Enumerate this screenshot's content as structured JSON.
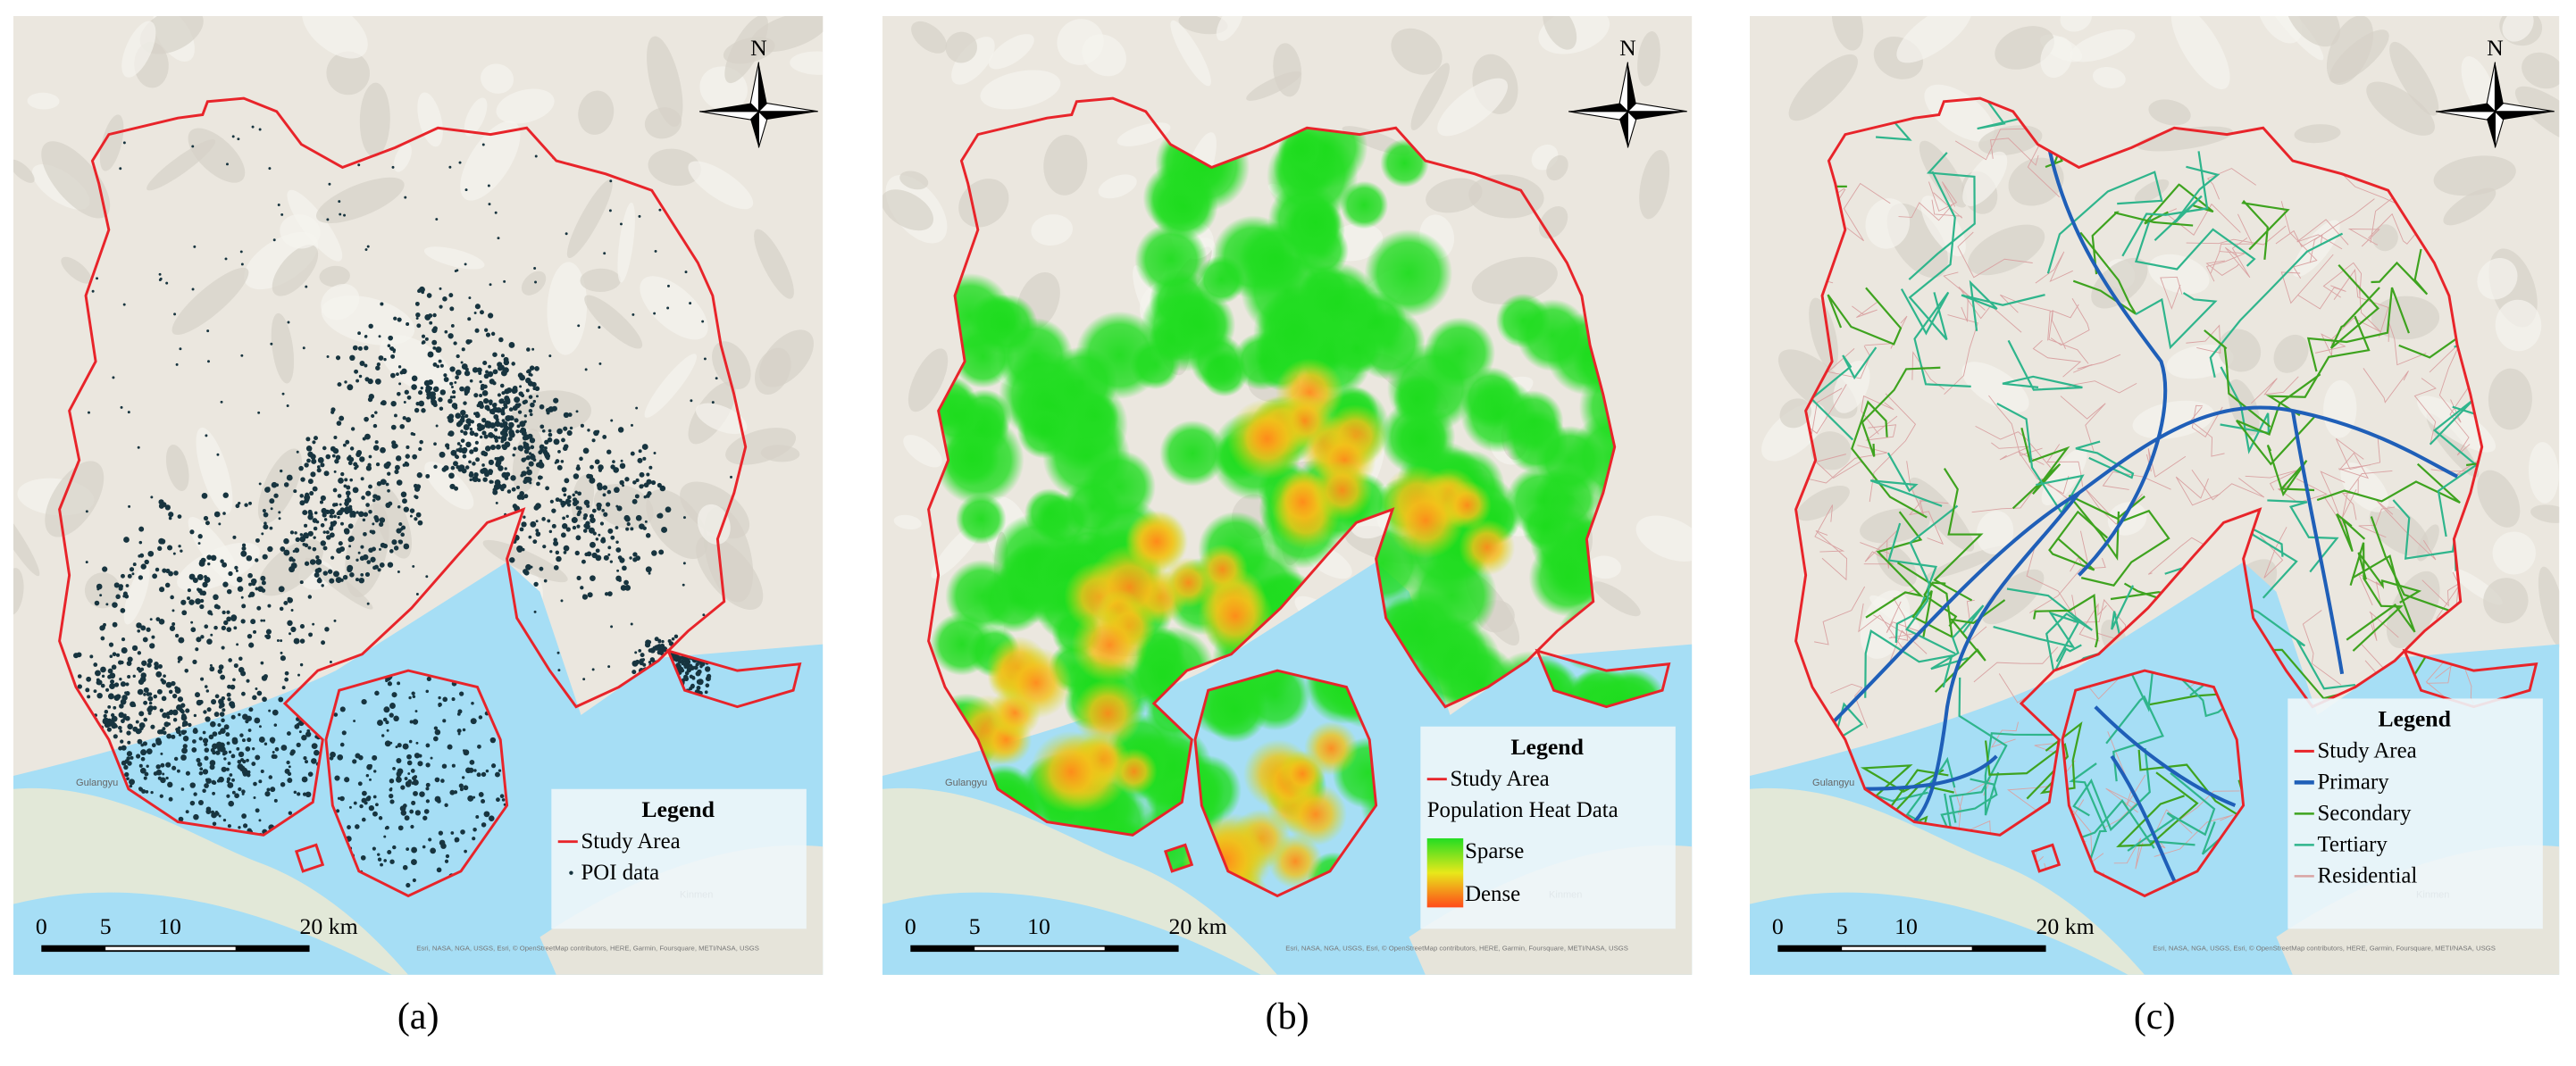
{
  "panels": [
    {
      "label": "(a)",
      "north": "N",
      "scale_bar": [
        "0",
        "5",
        "10",
        "20 km"
      ],
      "place_labels": [
        "Gulangyu",
        "Kinmen"
      ],
      "attribution": "Esri, NASA, NGA, USGS, Esri, © OpenStreetMap contributors, HERE, Garmin, Foursquare, METI/NASA, USGS",
      "legend": {
        "title": "Legend",
        "items": [
          "Study Area",
          "POI data"
        ]
      }
    },
    {
      "label": "(b)",
      "north": "N",
      "scale_bar": [
        "0",
        "5",
        "10",
        "20 km"
      ],
      "place_labels": [
        "Gulangyu",
        "Kinmen"
      ],
      "attribution": "Esri, NASA, NGA, USGS, Esri, © OpenStreetMap contributors, HERE, Garmin, Foursquare, METI/NASA, USGS",
      "legend": {
        "title": "Legend",
        "items": [
          "Study Area",
          "Population Heat Data"
        ],
        "ramp": [
          "Sparse",
          "Dense"
        ]
      }
    },
    {
      "label": "(c)",
      "north": "N",
      "scale_bar": [
        "0",
        "5",
        "10",
        "20 km"
      ],
      "place_labels": [
        "Gulangyu",
        "Kinmen"
      ],
      "attribution": "Esri, NASA, NGA, USGS, Esri, © OpenStreetMap contributors, HERE, Garmin, Foursquare, METI/NASA, USGS",
      "legend": {
        "title": "Legend",
        "items": [
          "Study Area",
          "Primary",
          "Secondary",
          "Tertiary",
          "Residential"
        ],
        "colors": [
          "#e8242a",
          "#1f5fb8",
          "#3ea31f",
          "#2fb58c",
          "#d9a3a3"
        ]
      }
    }
  ]
}
